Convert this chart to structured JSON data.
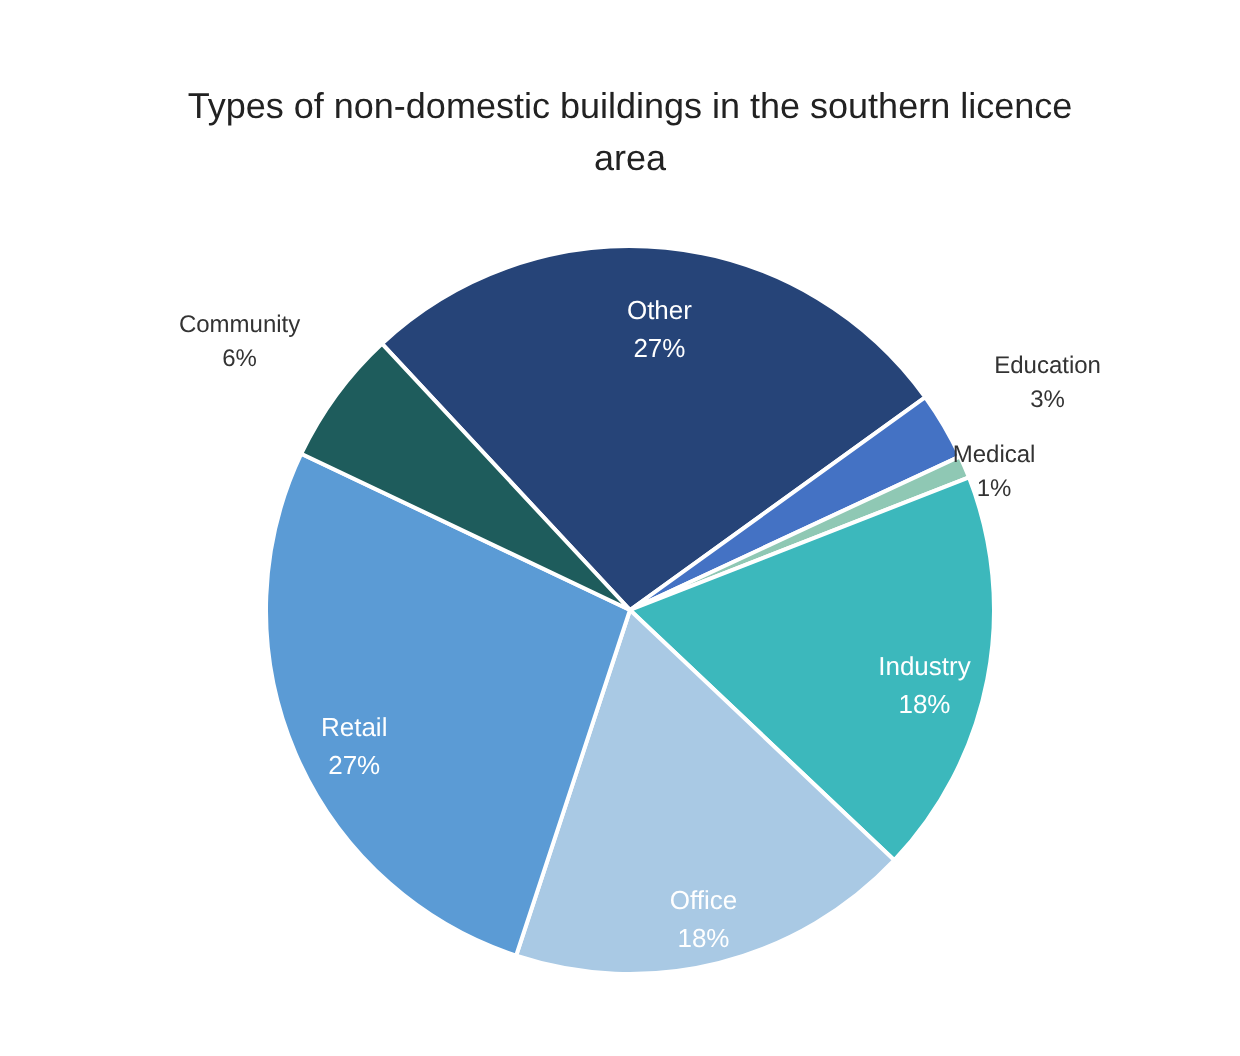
{
  "chart_data": {
    "type": "pie",
    "title": "Types of non-domestic buildings in the southern licence area",
    "categories": [
      "Other",
      "Education",
      "Medical",
      "Industry",
      "Office",
      "Retail",
      "Community"
    ],
    "values": [
      27,
      3,
      1,
      18,
      18,
      27,
      6
    ],
    "value_labels": [
      "27%",
      "3%",
      "1%",
      "18%",
      "18%",
      "27%",
      "6%"
    ],
    "colors": [
      "#264478",
      "#4472c4",
      "#8fc8b4",
      "#3cb8bc",
      "#a9c9e4",
      "#5b9bd5",
      "#1e5c5c"
    ]
  }
}
